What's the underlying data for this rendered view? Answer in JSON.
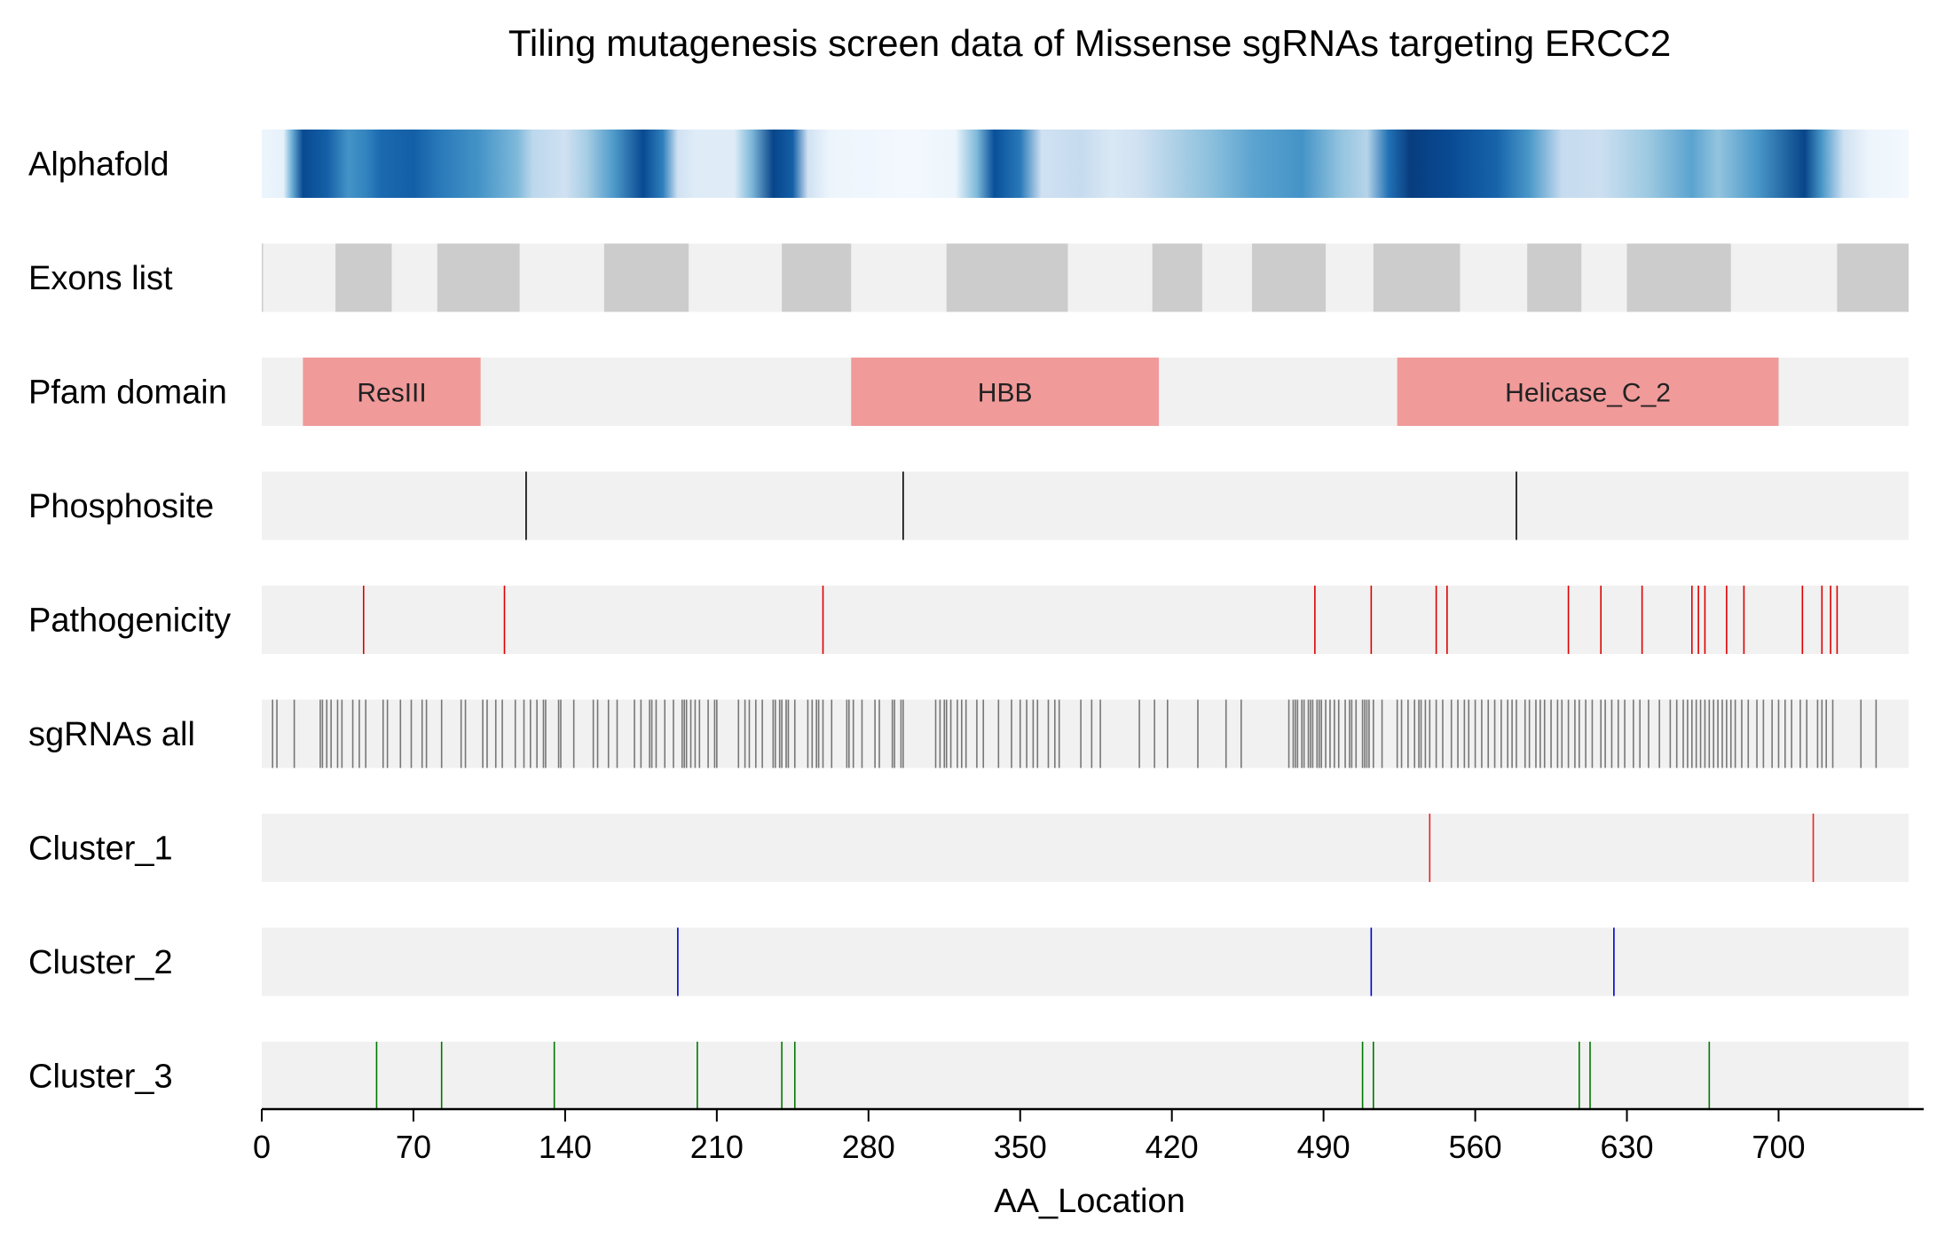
{
  "chart_data": {
    "type": "track",
    "title": "Tiling mutagenesis screen data of Missense sgRNAs targeting ERCC2",
    "xlabel": "AA_Location",
    "xlim": [
      0,
      760
    ],
    "xticks": [
      0,
      70,
      140,
      210,
      280,
      350,
      420,
      490,
      560,
      630,
      700
    ],
    "tracks": [
      {
        "name": "Alphafold",
        "kind": "heatmap",
        "colormap": "Blues",
        "stops": [
          [
            0,
            0.05
          ],
          [
            10,
            0.08
          ],
          [
            14,
            0.5
          ],
          [
            19,
            0.9
          ],
          [
            30,
            0.82
          ],
          [
            40,
            0.62
          ],
          [
            48,
            0.68
          ],
          [
            55,
            0.78
          ],
          [
            70,
            0.82
          ],
          [
            82,
            0.72
          ],
          [
            100,
            0.62
          ],
          [
            118,
            0.45
          ],
          [
            125,
            0.28
          ],
          [
            140,
            0.2
          ],
          [
            150,
            0.35
          ],
          [
            162,
            0.58
          ],
          [
            176,
            0.9
          ],
          [
            185,
            0.7
          ],
          [
            192,
            0.2
          ],
          [
            200,
            0.12
          ],
          [
            218,
            0.12
          ],
          [
            226,
            0.45
          ],
          [
            236,
            0.92
          ],
          [
            245,
            0.82
          ],
          [
            252,
            0.2
          ],
          [
            262,
            0.05
          ],
          [
            300,
            0.02
          ],
          [
            320,
            0.05
          ],
          [
            330,
            0.45
          ],
          [
            338,
            0.88
          ],
          [
            350,
            0.72
          ],
          [
            360,
            0.2
          ],
          [
            378,
            0.25
          ],
          [
            392,
            0.15
          ],
          [
            405,
            0.2
          ],
          [
            425,
            0.35
          ],
          [
            438,
            0.42
          ],
          [
            458,
            0.55
          ],
          [
            480,
            0.62
          ],
          [
            498,
            0.4
          ],
          [
            510,
            0.3
          ],
          [
            520,
            0.75
          ],
          [
            530,
            0.95
          ],
          [
            548,
            0.9
          ],
          [
            570,
            0.8
          ],
          [
            585,
            0.6
          ],
          [
            600,
            0.25
          ],
          [
            618,
            0.22
          ],
          [
            640,
            0.38
          ],
          [
            660,
            0.55
          ],
          [
            672,
            0.4
          ],
          [
            690,
            0.6
          ],
          [
            712,
            0.92
          ],
          [
            720,
            0.6
          ],
          [
            730,
            0.2
          ],
          [
            742,
            0.05
          ],
          [
            760,
            0.02
          ]
        ]
      },
      {
        "name": "Exons list",
        "kind": "intervals",
        "color": "#cccccc",
        "intervals": [
          [
            0,
            0.6
          ],
          [
            34,
            60
          ],
          [
            81,
            119
          ],
          [
            158,
            197
          ],
          [
            240,
            272
          ],
          [
            316,
            372
          ],
          [
            411,
            434
          ],
          [
            457,
            491
          ],
          [
            513,
            553
          ],
          [
            584,
            609
          ],
          [
            630,
            678
          ],
          [
            727,
            760
          ]
        ]
      },
      {
        "name": "Pfam domain",
        "kind": "domains",
        "color": "#f09a9a",
        "domains": [
          {
            "label": "ResIII",
            "start": 19,
            "end": 101
          },
          {
            "label": "HBB",
            "start": 272,
            "end": 414
          },
          {
            "label": "Helicase_C_2",
            "start": 524,
            "end": 700
          }
        ]
      },
      {
        "name": "Phosphosite",
        "kind": "lines",
        "color": "#000000",
        "positions": [
          122,
          296,
          579
        ]
      },
      {
        "name": "Pathogenicity",
        "kind": "lines",
        "color": "#dd0000",
        "positions": [
          47,
          112,
          259,
          486,
          512,
          542,
          547,
          603,
          618,
          637,
          660,
          663,
          666,
          676,
          684,
          711,
          720,
          724,
          727
        ]
      },
      {
        "name": "sgRNAs all",
        "kind": "lines",
        "color": "#777777",
        "positions": [
          5,
          7,
          15,
          27,
          28,
          30,
          32,
          35,
          37,
          42,
          45,
          48,
          56,
          58,
          64,
          69,
          74,
          76,
          83,
          92,
          94,
          102,
          104,
          108,
          111,
          117,
          121,
          124,
          127,
          130,
          131,
          137,
          138,
          144,
          153,
          155,
          160,
          164,
          172,
          175,
          179,
          180,
          182,
          186,
          190,
          194,
          195,
          196,
          198,
          200,
          202,
          206,
          209,
          210,
          220,
          223,
          225,
          228,
          231,
          236,
          237,
          239,
          240,
          242,
          243,
          246,
          252,
          254,
          256,
          257,
          259,
          263,
          270,
          271,
          273,
          277,
          283,
          285,
          291,
          292,
          295,
          296,
          311,
          313,
          315,
          316,
          318,
          321,
          323,
          325,
          330,
          333,
          340,
          346,
          350,
          353,
          356,
          358,
          363,
          366,
          368,
          378,
          383,
          387,
          405,
          412,
          418,
          432,
          445,
          452,
          474,
          476,
          477,
          478,
          480,
          481,
          483,
          484,
          485,
          487,
          488,
          489,
          491,
          493,
          495,
          497,
          500,
          502,
          503,
          505,
          508,
          509,
          510,
          511,
          513,
          517,
          524,
          526,
          529,
          532,
          534,
          535,
          537,
          539,
          542,
          545,
          549,
          552,
          555,
          557,
          560,
          563,
          566,
          569,
          572,
          575,
          577,
          579,
          583,
          585,
          588,
          590,
          592,
          595,
          598,
          600,
          603,
          606,
          608,
          611,
          614,
          618,
          620,
          623,
          626,
          629,
          633,
          636,
          640,
          645,
          650,
          653,
          656,
          658,
          660,
          662,
          664,
          666,
          668,
          670,
          672,
          674,
          676,
          678,
          680,
          683,
          686,
          690,
          693,
          697,
          700,
          703,
          706,
          710,
          713,
          718,
          720,
          722,
          725,
          738,
          745
        ]
      },
      {
        "name": "Cluster_1",
        "kind": "lines",
        "color": "#ee2222",
        "positions": [
          539,
          716
        ]
      },
      {
        "name": "Cluster_2",
        "kind": "lines",
        "color": "#0000cc",
        "positions": [
          192,
          512,
          624
        ]
      },
      {
        "name": "Cluster_3",
        "kind": "lines",
        "color": "#007700",
        "positions": [
          53,
          83,
          135,
          201,
          240,
          246,
          508,
          513,
          608,
          613,
          668
        ]
      }
    ]
  }
}
